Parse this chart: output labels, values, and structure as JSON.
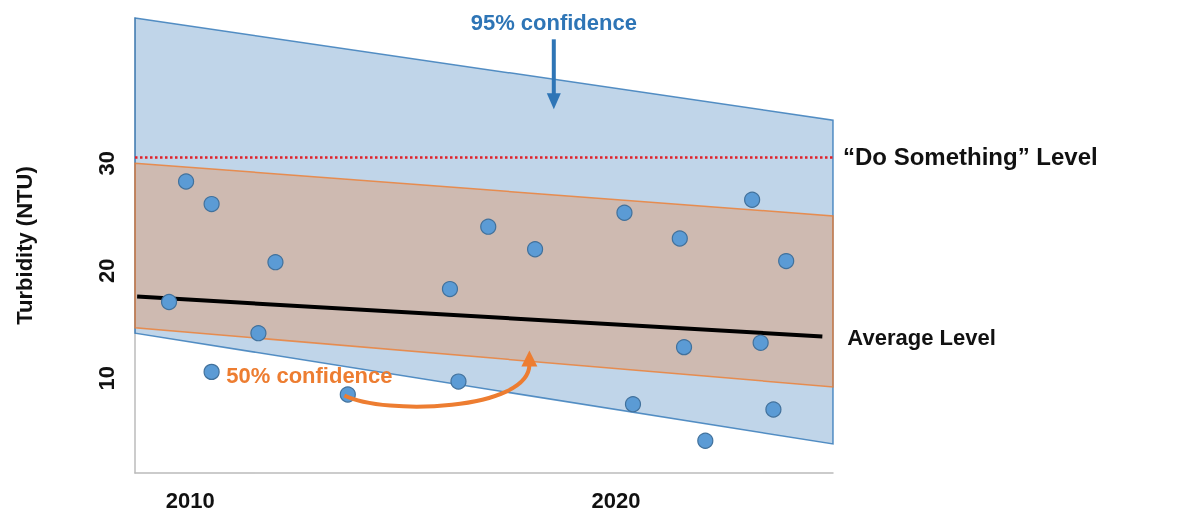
{
  "chart_data": {
    "type": "scatter",
    "ylabel": "Turbidity (NTU)",
    "xlim": [
      2008.7,
      2025.1
    ],
    "xticks": [
      2010,
      2020
    ],
    "ylim": [
      1.2,
      43.5
    ],
    "yticks": [
      10,
      20,
      30
    ],
    "grid": false,
    "legend": false,
    "series": [
      {
        "type": "area",
        "name": "95% confidence",
        "color": "#2e75b6",
        "x": [
          2008.7,
          2025.1
        ],
        "values": [
          null,
          null
        ],
        "lower": [
          14.2,
          3.9
        ],
        "upper": [
          43.5,
          34.0
        ]
      },
      {
        "type": "area",
        "name": "50% confidence",
        "color": "#ed7d31",
        "x": [
          2008.7,
          2025.1
        ],
        "values": [
          null,
          null
        ],
        "lower": [
          14.7,
          9.2
        ],
        "upper": [
          30.0,
          25.1
        ]
      },
      {
        "type": "line",
        "name": "Average  Level",
        "color": "#000000",
        "marker": "none",
        "x": [
          2008.75,
          2024.85
        ],
        "values": [
          17.6,
          13.9
        ]
      },
      {
        "color": "#5b9bd5",
        "marker": "circle",
        "x": [
          2009.5,
          2009.9,
          2010.5,
          2010.5,
          2011.6,
          2012.0,
          2013.7,
          2016.1,
          2016.3,
          2017.0,
          2018.1,
          2020.2,
          2020.4,
          2021.5,
          2021.6,
          2022.1,
          2023.2,
          2023.4,
          2023.7,
          2024.0
        ],
        "values": [
          17.1,
          28.3,
          26.2,
          10.6,
          14.2,
          20.8,
          8.5,
          18.3,
          9.7,
          24.1,
          22.0,
          25.4,
          7.6,
          23.0,
          12.9,
          4.2,
          26.6,
          13.3,
          7.1,
          20.9
        ]
      }
    ],
    "ref_lines": [
      {
        "axis": "y",
        "value": 30.6,
        "label": "“Do Something” Level",
        "color": "#e0202a",
        "line_style": "dotted"
      }
    ]
  }
}
